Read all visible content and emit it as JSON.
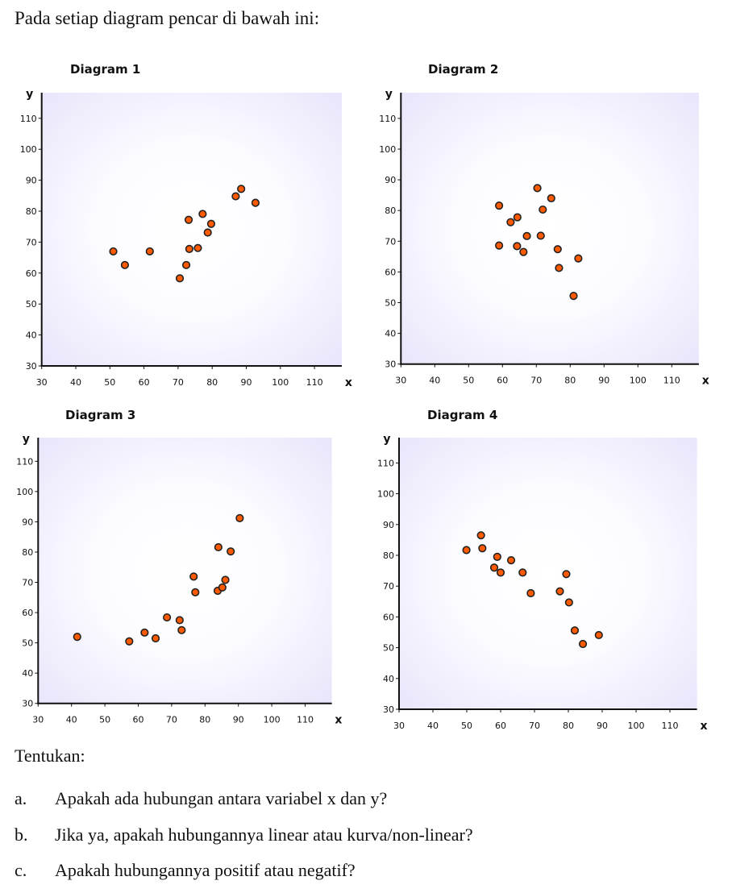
{
  "intro": "Pada setiap diagram pencar di bawah ini:",
  "chart_data": [
    {
      "type": "scatter",
      "title": "Diagram 1",
      "xlabel": "x",
      "ylabel": "y",
      "xlim": [
        30,
        120
      ],
      "ylim": [
        30,
        115
      ],
      "xticks": [
        30,
        40,
        50,
        60,
        70,
        80,
        90,
        100,
        110
      ],
      "yticks": [
        30,
        40,
        50,
        60,
        70,
        80,
        90,
        100,
        110
      ],
      "points": [
        [
          51,
          67
        ],
        [
          54.4,
          62.6
        ],
        [
          61.7,
          67
        ],
        [
          70.5,
          58.3
        ],
        [
          72.4,
          62.6
        ],
        [
          73.1,
          77.2
        ],
        [
          73.3,
          67.8
        ],
        [
          75.8,
          68.1
        ],
        [
          77.2,
          79.1
        ],
        [
          78.7,
          73.1
        ],
        [
          79.7,
          75.9
        ],
        [
          86.9,
          84.8
        ],
        [
          88.5,
          87.2
        ],
        [
          92.7,
          82.7
        ]
      ]
    },
    {
      "type": "scatter",
      "title": "Diagram 2",
      "xlabel": "x",
      "ylabel": "y",
      "xlim": [
        30,
        120
      ],
      "ylim": [
        30,
        115
      ],
      "xticks": [
        30,
        40,
        50,
        60,
        70,
        80,
        90,
        100,
        110
      ],
      "yticks": [
        30,
        40,
        50,
        60,
        70,
        80,
        90,
        100,
        110
      ],
      "points": [
        [
          59,
          81.6
        ],
        [
          62.4,
          76.2
        ],
        [
          64.4,
          77.8
        ],
        [
          59,
          68.6
        ],
        [
          64.3,
          68.4
        ],
        [
          66.2,
          66.5
        ],
        [
          67.2,
          71.7
        ],
        [
          70.3,
          87.3
        ],
        [
          71.9,
          80.3
        ],
        [
          71.3,
          71.8
        ],
        [
          74.4,
          84
        ],
        [
          76.3,
          67.4
        ],
        [
          76.7,
          61.3
        ],
        [
          82.4,
          64.4
        ],
        [
          81,
          52.2
        ]
      ]
    },
    {
      "type": "scatter",
      "title": "Diagram 3",
      "xlabel": "x",
      "ylabel": "y",
      "xlim": [
        30,
        120
      ],
      "ylim": [
        30,
        115
      ],
      "xticks": [
        30,
        40,
        50,
        60,
        70,
        80,
        90,
        100,
        110
      ],
      "yticks": [
        30,
        40,
        50,
        60,
        70,
        80,
        90,
        100,
        110
      ],
      "points": [
        [
          41.7,
          52
        ],
        [
          57.3,
          50.5
        ],
        [
          61.9,
          53.4
        ],
        [
          65.2,
          51.5
        ],
        [
          68.6,
          58.4
        ],
        [
          72.4,
          57.5
        ],
        [
          73,
          54.2
        ],
        [
          76.6,
          71.9
        ],
        [
          77.1,
          66.7
        ],
        [
          83.8,
          67.2
        ],
        [
          85.2,
          68.3
        ],
        [
          86.1,
          70.8
        ],
        [
          84,
          81.6
        ],
        [
          87.7,
          80.2
        ],
        [
          90.4,
          91.2
        ]
      ]
    },
    {
      "type": "scatter",
      "title": "Diagram 4",
      "xlabel": "x",
      "ylabel": "y",
      "xlim": [
        30,
        120
      ],
      "ylim": [
        30,
        115
      ],
      "xticks": [
        30,
        40,
        50,
        60,
        70,
        80,
        90,
        100,
        110
      ],
      "yticks": [
        30,
        40,
        50,
        60,
        70,
        80,
        90,
        100,
        110
      ],
      "points": [
        [
          49.9,
          81.7
        ],
        [
          54.2,
          86.5
        ],
        [
          54.6,
          82.3
        ],
        [
          59,
          79.5
        ],
        [
          58.1,
          76
        ],
        [
          60,
          74.4
        ],
        [
          63.1,
          78.4
        ],
        [
          66.5,
          74.4
        ],
        [
          68.9,
          67.7
        ],
        [
          77.5,
          68.3
        ],
        [
          79.4,
          73.9
        ],
        [
          80.2,
          64.7
        ],
        [
          81.9,
          55.6
        ],
        [
          84.3,
          51.2
        ],
        [
          89,
          54.1
        ]
      ]
    }
  ],
  "colors": {
    "point_fill": "#ff5a00",
    "point_stroke": "#222222",
    "plot_bg_edge": "#ebe7fb"
  },
  "tentukan": "Tentukan:",
  "questions": [
    {
      "label": "a.",
      "text": "Apakah ada hubungan antara variabel x dan y?"
    },
    {
      "label": "b.",
      "text": "Jika ya, apakah hubungannya linear atau kurva/non-linear?"
    },
    {
      "label": "c.",
      "text": "Apakah hubungannya positif atau negatif?"
    }
  ]
}
